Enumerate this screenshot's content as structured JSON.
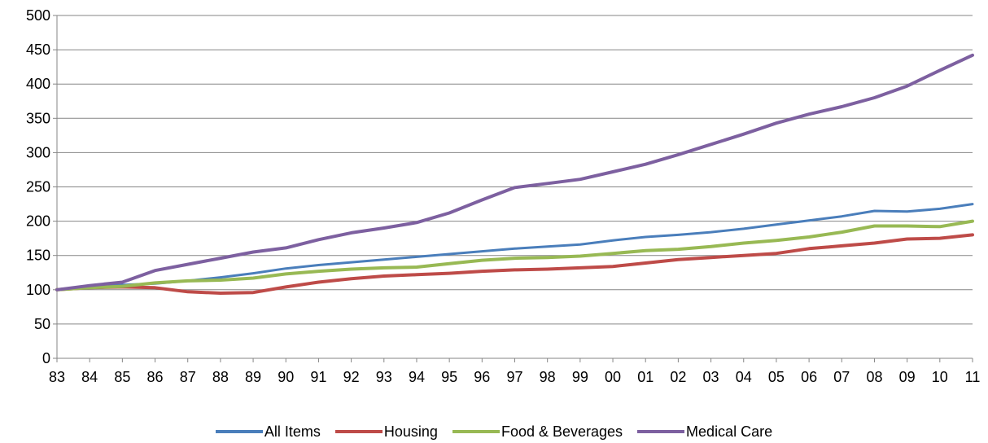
{
  "chart_data": {
    "type": "line",
    "title": "",
    "xlabel": "",
    "ylabel": "",
    "ylim": [
      0,
      500
    ],
    "yticks": [
      0,
      50,
      100,
      150,
      200,
      250,
      300,
      350,
      400,
      450,
      500
    ],
    "grid": "horizontal",
    "legend": "bottom",
    "categories": [
      "83",
      "84",
      "85",
      "86",
      "87",
      "88",
      "89",
      "90",
      "91",
      "92",
      "93",
      "94",
      "95",
      "96",
      "97",
      "98",
      "99",
      "00",
      "01",
      "02",
      "03",
      "04",
      "05",
      "06",
      "07",
      "08",
      "09",
      "10",
      "11"
    ],
    "series": [
      {
        "name": "All Items",
        "color": "#4A7EBB",
        "values": [
          100,
          103,
          107,
          109,
          113,
          118,
          124,
          131,
          136,
          140,
          144,
          148,
          152,
          156,
          160,
          163,
          166,
          172,
          177,
          180,
          184,
          189,
          195,
          201,
          207,
          215,
          214,
          218,
          225
        ]
      },
      {
        "name": "Housing",
        "color": "#BE4B48",
        "values": [
          100,
          103,
          104,
          103,
          97,
          95,
          96,
          104,
          111,
          116,
          120,
          122,
          124,
          127,
          129,
          130,
          132,
          134,
          139,
          144,
          147,
          150,
          153,
          160,
          164,
          168,
          174,
          175,
          180
        ]
      },
      {
        "name": "Food & Beverages",
        "color": "#98B954",
        "values": [
          100,
          103,
          105,
          110,
          113,
          114,
          117,
          123,
          127,
          130,
          132,
          133,
          138,
          143,
          146,
          147,
          149,
          153,
          157,
          159,
          163,
          168,
          172,
          177,
          184,
          193,
          193,
          192,
          200
        ]
      },
      {
        "name": "Medical Care",
        "color": "#7D60A0",
        "values": [
          100,
          106,
          111,
          128,
          137,
          146,
          155,
          161,
          173,
          183,
          190,
          198,
          212,
          231,
          249,
          255,
          261,
          272,
          283,
          297,
          312,
          327,
          343,
          356,
          367,
          380,
          397,
          420,
          442
        ]
      }
    ]
  }
}
